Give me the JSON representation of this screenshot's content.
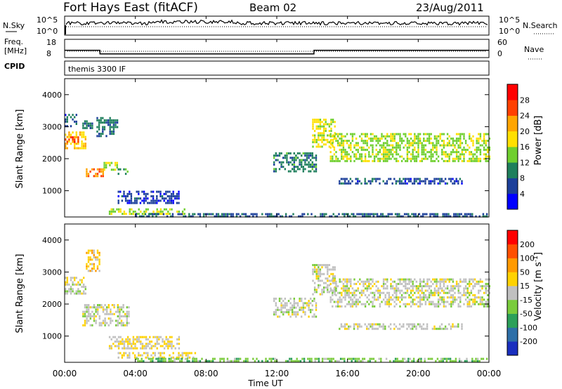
{
  "header": {
    "station": "Fort Hays East (fitACF)",
    "beam": "Beam 02",
    "date": "23/Aug/2011"
  },
  "status_panels": {
    "nsky_label": "N.Sky",
    "nsky_ticks": [
      "10^5",
      "10^0"
    ],
    "nsearch_label": "N.Search",
    "nsearch_ticks": [
      "10^5",
      "10^0"
    ],
    "freq_label_1": "Freq.",
    "freq_label_2": "[MHz]",
    "freq_ticks": [
      "18",
      "8"
    ],
    "nave_label": "Nave",
    "nave_ticks": [
      "60",
      "0"
    ],
    "cpid_label": "CPID",
    "cpid_text": "themis 3300 IF"
  },
  "axes": {
    "x_ticks": [
      "00:00",
      "04:00",
      "08:00",
      "12:00",
      "16:00",
      "20:00",
      "00:00"
    ],
    "x_title": "Time UT",
    "y_title": "Slant Range [km]",
    "y_ticks": [
      "4000",
      "3000",
      "2000",
      "1000"
    ]
  },
  "colorbars": {
    "power_title": "Power [dB]",
    "power_ticks": [
      "28",
      "24",
      "20",
      "16",
      "12",
      "8",
      "4"
    ],
    "power_colors": [
      "#0000ff",
      "#1c3f9a",
      "#1f7f5c",
      "#6fcf2f",
      "#ffe000",
      "#ffa500",
      "#ff4000",
      "#ff0000"
    ],
    "velocity_title_main": "Velocity [m s",
    "velocity_title_exp": "-1",
    "velocity_title_close": "]",
    "velocity_ticks": [
      "200",
      "100",
      "50",
      "15",
      "-15",
      "-50",
      "-100",
      "-200"
    ],
    "velocity_colors": [
      "#1a2fbf",
      "#2d6fa8",
      "#2ca05a",
      "#7acc3c",
      "#c0c0c0",
      "#ffd200",
      "#ff9a00",
      "#ff5000",
      "#ff0000"
    ]
  },
  "chart_data": {
    "type": "heatmap",
    "title": "Fort Hays East (fitACF)",
    "x_units": "hours UT",
    "xlim": [
      0,
      24
    ],
    "ylim": [
      180,
      4500
    ],
    "panels": [
      {
        "name": "Power",
        "colorbar_label": "Power [dB]",
        "range": [
          0,
          30
        ],
        "bands": [
          {
            "t0": 0.0,
            "t1": 1.2,
            "r0": 2350,
            "r1": 2850,
            "value": 18
          },
          {
            "t0": 0.0,
            "t1": 0.8,
            "r0": 2500,
            "r1": 2700,
            "value": 24
          },
          {
            "t0": 0.0,
            "t1": 0.8,
            "r0": 3000,
            "r1": 3400,
            "value": 6
          },
          {
            "t0": 1.0,
            "t1": 1.6,
            "r0": 2950,
            "r1": 3200,
            "value": 8
          },
          {
            "t0": 1.2,
            "t1": 2.2,
            "r0": 1450,
            "r1": 1700,
            "value": 22
          },
          {
            "t0": 2.2,
            "t1": 3.0,
            "r0": 1650,
            "r1": 1900,
            "value": 14
          },
          {
            "t0": 3.0,
            "t1": 3.6,
            "r0": 1550,
            "r1": 1700,
            "value": 10
          },
          {
            "t0": 1.8,
            "t1": 3.0,
            "r0": 2700,
            "r1": 3300,
            "value": 8
          },
          {
            "t0": 2.5,
            "t1": 7.0,
            "r0": 300,
            "r1": 450,
            "value": 14
          },
          {
            "t0": 3.0,
            "t1": 6.5,
            "r0": 600,
            "r1": 1000,
            "value": 5
          },
          {
            "t0": 14.0,
            "t1": 15.3,
            "r0": 2350,
            "r1": 3250,
            "value": 16
          },
          {
            "t0": 11.8,
            "t1": 14.2,
            "r0": 1600,
            "r1": 2200,
            "value": 9
          },
          {
            "t0": 15.0,
            "t1": 24.0,
            "r0": 1900,
            "r1": 2800,
            "value": 14
          },
          {
            "t0": 15.5,
            "t1": 22.5,
            "r0": 1250,
            "r1": 1400,
            "value": 6
          },
          {
            "t0": 4.0,
            "t1": 24.0,
            "r0": 180,
            "r1": 300,
            "value": 7
          }
        ]
      },
      {
        "name": "Velocity",
        "colorbar_label": "Velocity [m s-1]",
        "range": [
          -250,
          250
        ],
        "bands": [
          {
            "t0": 0.0,
            "t1": 1.2,
            "r0": 2300,
            "r1": 2850,
            "value": 0
          },
          {
            "t0": 1.2,
            "t1": 2.0,
            "r0": 3000,
            "r1": 3700,
            "value": 60
          },
          {
            "t0": 1.0,
            "t1": 3.6,
            "r0": 1300,
            "r1": 2000,
            "value": 0
          },
          {
            "t0": 2.5,
            "t1": 6.5,
            "r0": 600,
            "r1": 1000,
            "value": 20
          },
          {
            "t0": 3.0,
            "t1": 7.5,
            "r0": 300,
            "r1": 500,
            "value": 30
          },
          {
            "t0": 14.0,
            "t1": 15.3,
            "r0": 2300,
            "r1": 3250,
            "value": 0
          },
          {
            "t0": 11.8,
            "t1": 14.2,
            "r0": 1600,
            "r1": 2200,
            "value": 0
          },
          {
            "t0": 15.0,
            "t1": 24.0,
            "r0": 1900,
            "r1": 2800,
            "value": 0
          },
          {
            "t0": 15.5,
            "t1": 22.5,
            "r0": 1250,
            "r1": 1400,
            "value": 0
          },
          {
            "t0": 4.0,
            "t1": 24.0,
            "r0": 180,
            "r1": 320,
            "value": -60
          }
        ]
      }
    ],
    "frequency_steps": [
      {
        "t0": 0.0,
        "t1": 2.0,
        "mhz": 12
      },
      {
        "t0": 2.0,
        "t1": 14.1,
        "mhz": 10
      },
      {
        "t0": 14.1,
        "t1": 24.0,
        "mhz": 12
      }
    ]
  }
}
